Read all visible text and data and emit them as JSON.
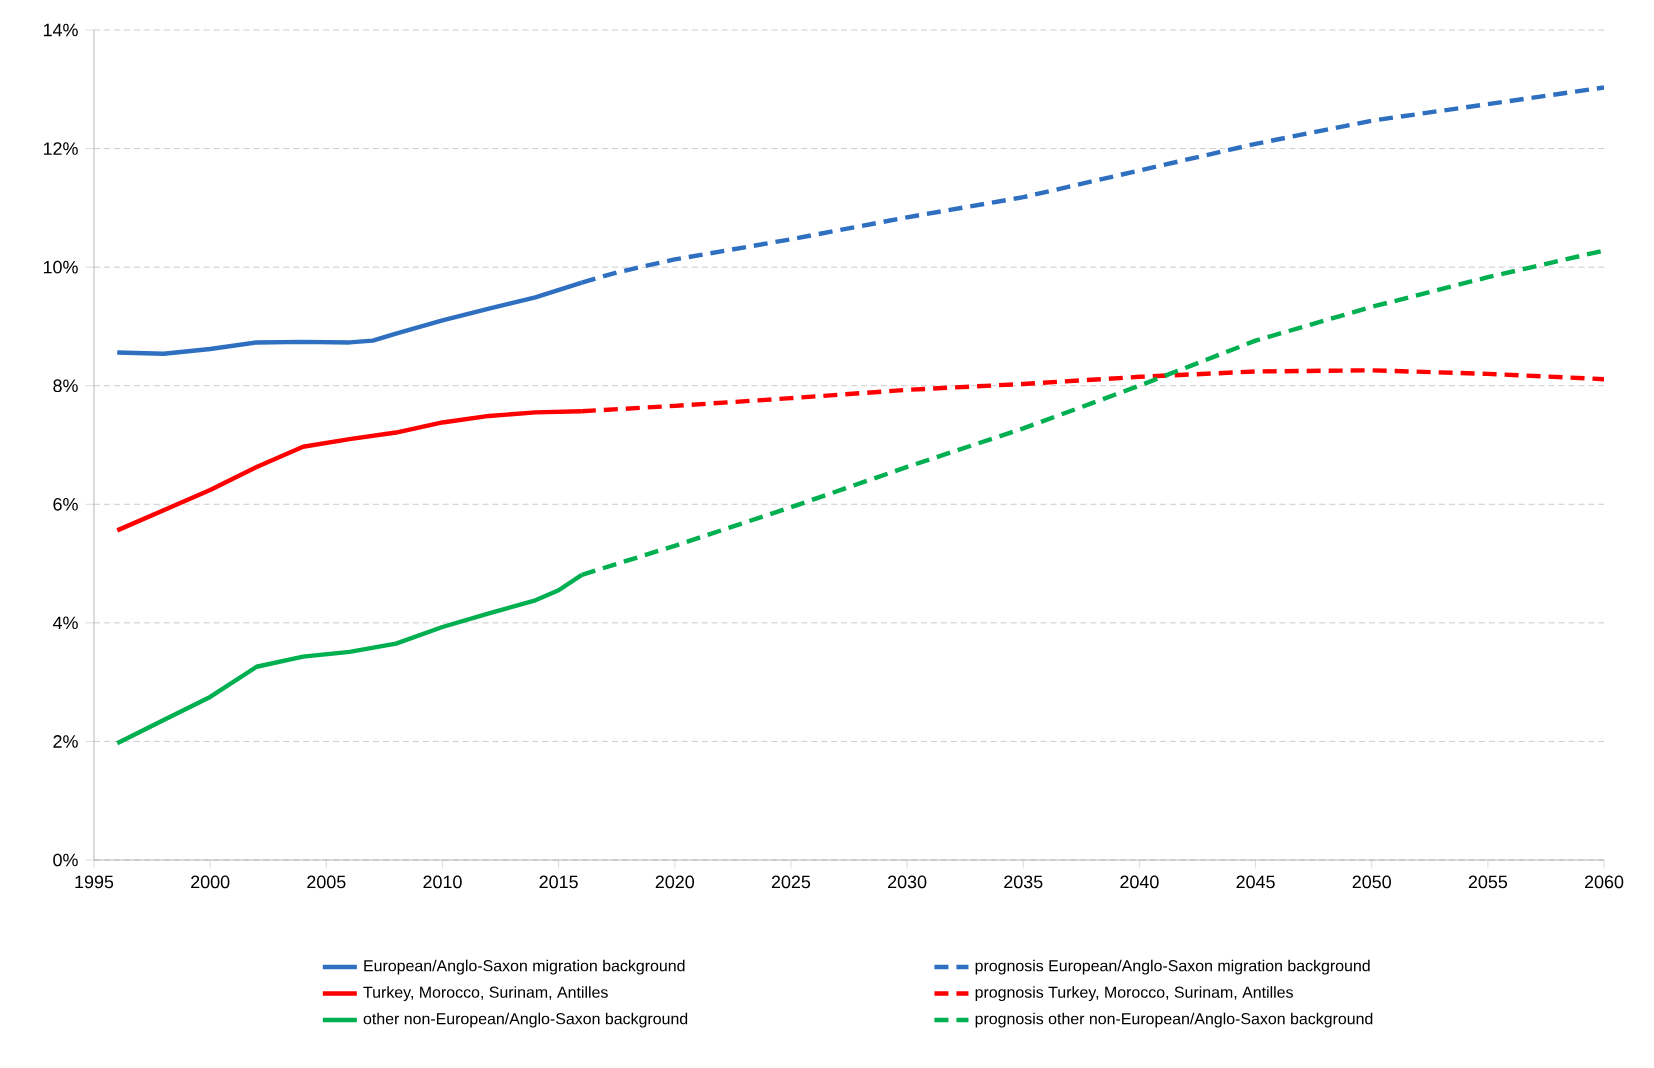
{
  "chart_data": {
    "type": "line",
    "xlim": [
      1995,
      2060
    ],
    "xticks": [
      1995,
      2000,
      2005,
      2010,
      2015,
      2020,
      2025,
      2030,
      2035,
      2040,
      2045,
      2050,
      2055,
      2060
    ],
    "ylim": [
      0,
      14
    ],
    "yticks": [
      {
        "value": 0,
        "label": "0%"
      },
      {
        "value": 2,
        "label": "2%"
      },
      {
        "value": 4,
        "label": "4%"
      },
      {
        "value": 6,
        "label": "6%"
      },
      {
        "value": 8,
        "label": "8%"
      },
      {
        "value": 10,
        "label": "10%"
      },
      {
        "value": 12,
        "label": "12%"
      },
      {
        "value": 14,
        "label": "14%"
      }
    ],
    "grid": "y",
    "legend": "bottom",
    "series": [
      {
        "name": "European/Anglo-Saxon migration background",
        "color": "#2e6fc0",
        "line_style": "solid",
        "x": [
          1996,
          1998,
          2000,
          2002,
          2004,
          2006,
          2007,
          2008,
          2010,
          2012,
          2014,
          2016
        ],
        "values": [
          8.56,
          8.54,
          8.62,
          8.73,
          8.74,
          8.73,
          8.76,
          8.88,
          9.1,
          9.3,
          9.49,
          9.74
        ]
      },
      {
        "name": "prognosis European/Anglo-Saxon migration background",
        "color": "#2e6fc0",
        "line_style": "dashed",
        "x": [
          2016,
          2017.5,
          2020,
          2025,
          2030,
          2035,
          2040,
          2045,
          2050,
          2055,
          2060
        ],
        "values": [
          9.74,
          9.91,
          10.13,
          10.47,
          10.84,
          11.18,
          11.63,
          12.08,
          12.47,
          12.75,
          13.03
        ]
      },
      {
        "name": "Turkey, Morocco, Surinam, Antilles",
        "color": "#ff0000",
        "line_style": "solid",
        "x": [
          1996,
          1998,
          2000,
          2002,
          2004,
          2006,
          2008,
          2010,
          2012,
          2014,
          2016
        ],
        "values": [
          5.56,
          5.9,
          6.24,
          6.63,
          6.97,
          7.1,
          7.21,
          7.38,
          7.49,
          7.55,
          7.57
        ]
      },
      {
        "name": "prognosis Turkey, Morocco, Surinam, Antilles",
        "color": "#ff0000",
        "line_style": "dashed",
        "x": [
          2016,
          2020,
          2025,
          2030,
          2035,
          2040,
          2045,
          2050,
          2055,
          2060
        ],
        "values": [
          7.57,
          7.66,
          7.79,
          7.93,
          8.03,
          8.15,
          8.24,
          8.26,
          8.2,
          8.11
        ]
      },
      {
        "name": "other non-European/Anglo-Saxon background",
        "color": "#00b050",
        "line_style": "solid",
        "x": [
          1996,
          1998,
          2000,
          2002,
          2004,
          2006,
          2008,
          2010,
          2012,
          2014,
          2015,
          2016
        ],
        "values": [
          1.97,
          2.36,
          2.75,
          3.26,
          3.43,
          3.51,
          3.65,
          3.93,
          4.16,
          4.38,
          4.55,
          4.81
        ]
      },
      {
        "name": "prognosis other non-European/Anglo-Saxon background",
        "color": "#00b050",
        "line_style": "dashed",
        "x": [
          2016,
          2020,
          2025,
          2030,
          2035,
          2040,
          2045,
          2050,
          2055,
          2060
        ],
        "values": [
          4.81,
          5.3,
          5.95,
          6.63,
          7.28,
          8.0,
          8.76,
          9.33,
          9.83,
          10.28
        ]
      }
    ]
  }
}
